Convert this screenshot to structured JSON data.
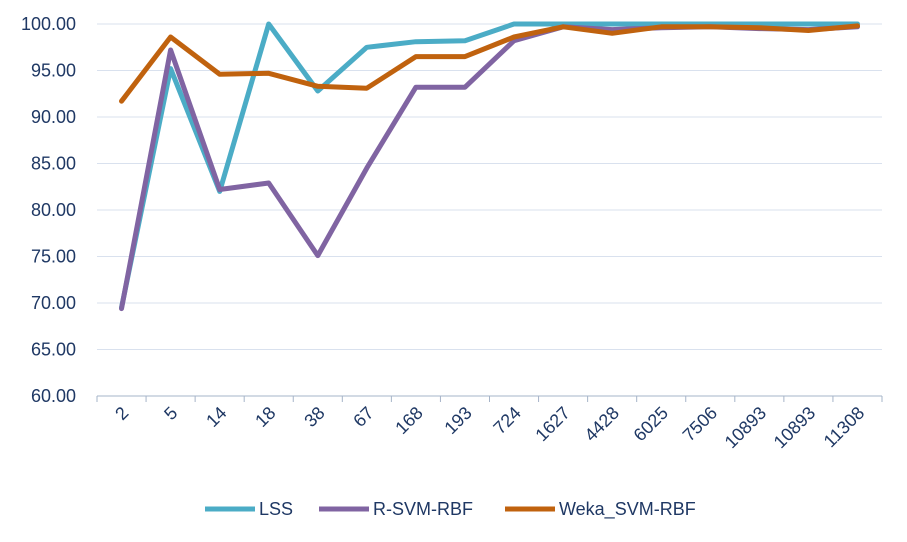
{
  "chart_data": {
    "type": "line",
    "categories": [
      "2",
      "5",
      "14",
      "18",
      "38",
      "67",
      "168",
      "193",
      "724",
      "1627",
      "4428",
      "6025",
      "7506",
      "10893",
      "10893",
      "11308"
    ],
    "ylim": [
      60,
      100
    ],
    "yticks": [
      "60.00",
      "65.00",
      "70.00",
      "75.00",
      "80.00",
      "85.00",
      "90.00",
      "95.00",
      "100.00"
    ],
    "grid": true,
    "legend_position": "bottom",
    "series": [
      {
        "name": "LSS",
        "color": "#4bacc6",
        "values": [
          69.5,
          95.2,
          82.0,
          100.0,
          92.8,
          97.5,
          98.1,
          98.2,
          100.0,
          100.0,
          100.0,
          100.0,
          100.0,
          100.0,
          100.0,
          100.0
        ]
      },
      {
        "name": "R-SVM-RBF",
        "color": "#8064a2",
        "values": [
          69.4,
          97.2,
          82.2,
          82.9,
          75.1,
          84.5,
          93.2,
          93.2,
          98.2,
          99.7,
          99.4,
          99.6,
          99.7,
          99.5,
          99.4,
          99.7
        ]
      },
      {
        "name": "Weka_SVM-RBF",
        "color": "#c0620e",
        "values": [
          91.7,
          98.6,
          94.6,
          94.7,
          93.3,
          93.1,
          96.5,
          96.5,
          98.6,
          99.7,
          99.0,
          99.7,
          99.7,
          99.6,
          99.3,
          99.8
        ]
      }
    ]
  }
}
